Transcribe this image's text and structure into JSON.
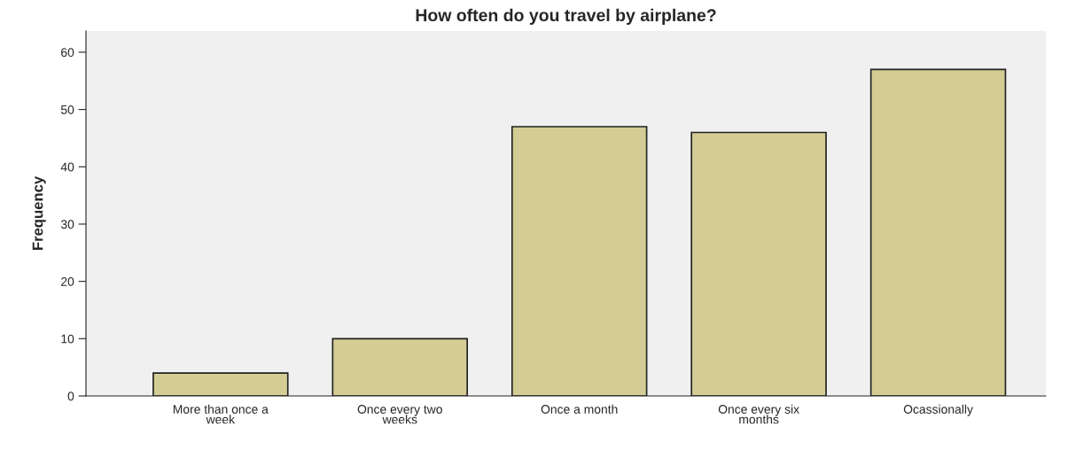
{
  "chart_data": {
    "type": "bar",
    "title": "How often do you travel by airplane?",
    "ylabel": "Frequency",
    "categories": [
      "More than once a\nweek",
      "Once every two\nweeks",
      "Once a month",
      "Once every six\nmonths",
      "Ocassionally"
    ],
    "values": [
      4,
      10,
      47,
      46,
      57
    ],
    "color": "#d3cd95",
    "ylim": [
      0,
      63.7
    ],
    "yticks": [
      0,
      10,
      20,
      30,
      40,
      50,
      60
    ],
    "grid": false
  }
}
